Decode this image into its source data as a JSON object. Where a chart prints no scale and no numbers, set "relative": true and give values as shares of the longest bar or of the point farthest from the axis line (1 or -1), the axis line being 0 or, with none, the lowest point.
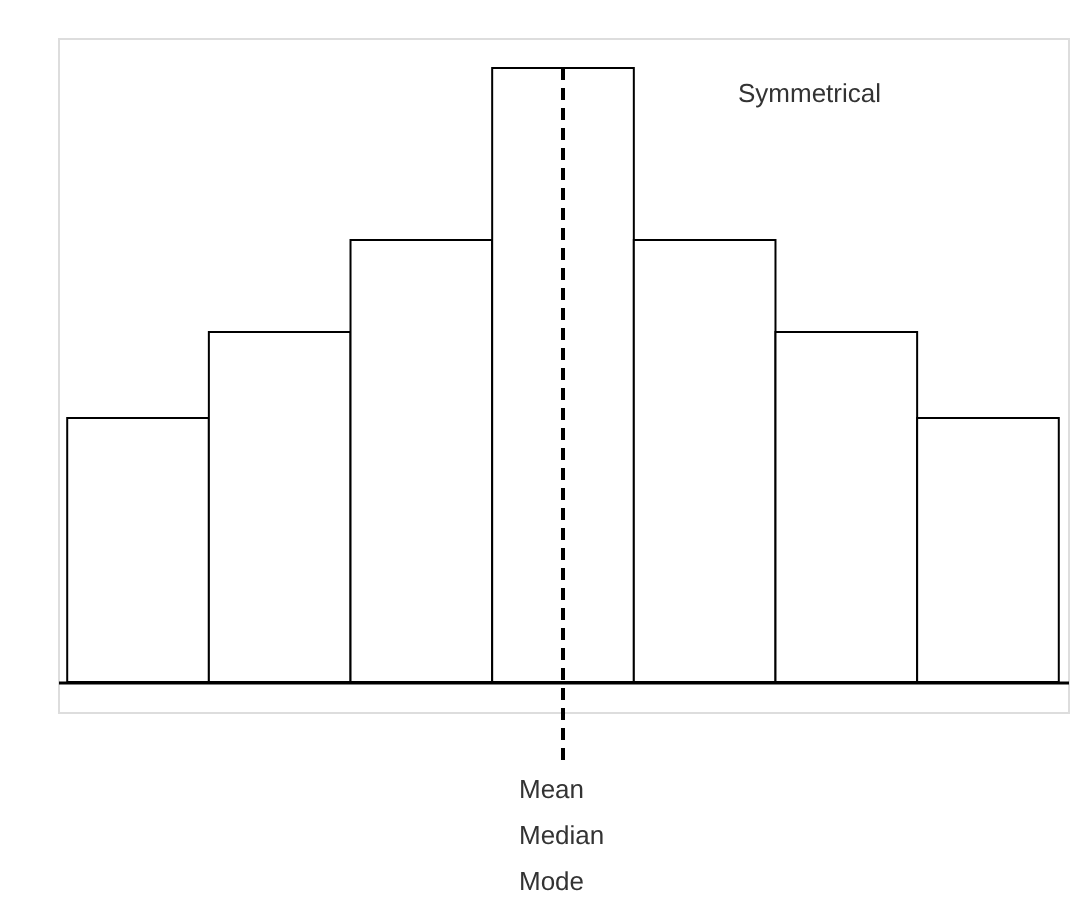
{
  "chart_data": {
    "type": "bar",
    "relative": true,
    "categories": [
      null,
      null,
      null,
      null,
      null,
      null,
      null
    ],
    "values": [
      0.43,
      0.57,
      0.72,
      1,
      0.72,
      0.57,
      0.43
    ],
    "color": "#ffffff",
    "annotations": [
      "Symmetrical",
      "Mean\nMedian\nMode"
    ]
  }
}
